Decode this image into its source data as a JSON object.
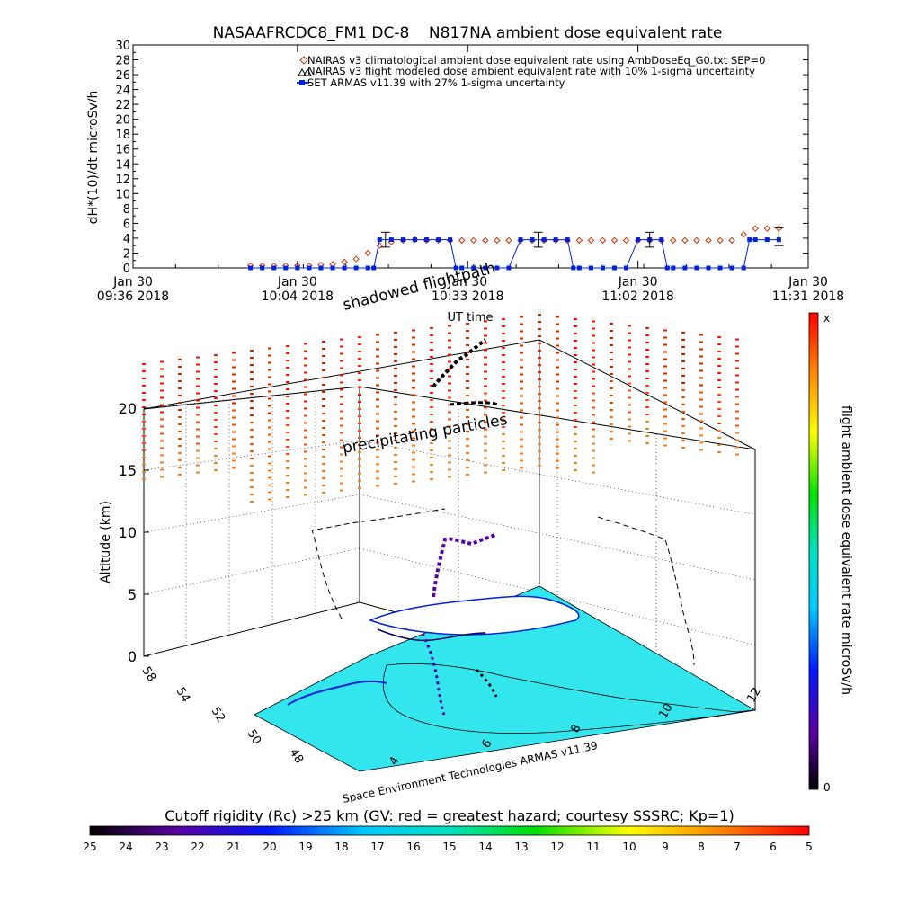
{
  "chart_data": [
    {
      "type": "scatter",
      "title": "NASAAFRCDC8_FM1 DC-8    N817NA ambient dose equivalent rate",
      "ylabel": "dH*(10)/dt microSv/h",
      "xlabel": "UT time",
      "ylim": [
        0,
        30
      ],
      "yticks": [
        0,
        2,
        4,
        6,
        8,
        10,
        12,
        14,
        16,
        18,
        20,
        22,
        24,
        26,
        28,
        30
      ],
      "xticks": [
        {
          "date": "Jan 30",
          "time": "09:36 2018",
          "t": 0
        },
        {
          "date": "Jan 30",
          "time": "10:04 2018",
          "t": 28
        },
        {
          "date": "Jan 30",
          "time": "10:33 2018",
          "t": 57
        },
        {
          "date": "Jan 30",
          "time": "11:02 2018",
          "t": 86
        },
        {
          "date": "Jan 30",
          "time": "11:31 2018",
          "t": 115
        }
      ],
      "legend_placement": "top",
      "series": [
        {
          "name": "NAIRAS v3 climatological ambient dose equivalent rate using AmbDoseEq_G0.txt SEP=0",
          "color": "#cc3300",
          "marker": "diamond",
          "x": [
            20,
            22,
            24,
            26,
            28,
            30,
            32,
            34,
            36,
            38,
            40,
            42,
            44,
            46,
            48,
            50,
            52,
            54,
            56,
            58,
            60,
            62,
            64,
            66,
            68,
            70,
            72,
            74,
            76,
            78,
            80,
            82,
            84,
            86,
            88,
            90,
            92,
            94,
            96,
            98,
            100,
            102,
            104,
            106,
            108,
            110
          ],
          "y": [
            0.3,
            0.3,
            0.3,
            0.3,
            0.3,
            0.3,
            0.4,
            0.5,
            0.8,
            1.2,
            2.0,
            3.0,
            3.5,
            3.7,
            3.8,
            3.7,
            3.7,
            3.7,
            3.7,
            3.7,
            3.7,
            3.7,
            3.7,
            3.7,
            3.7,
            3.7,
            3.7,
            3.7,
            3.7,
            3.7,
            3.7,
            3.7,
            3.7,
            3.7,
            3.7,
            3.7,
            3.7,
            3.7,
            3.7,
            3.7,
            3.7,
            3.7,
            4.5,
            5.3,
            5.3,
            5.3
          ]
        },
        {
          "name": "NAIRAS v3 flight modeled dose ambient equivalent rate with 10% 1-sigma uncertainty",
          "color": "#000000",
          "marker": "triangle",
          "x": [],
          "y": []
        },
        {
          "name": "SET ARMAS v11.39 with 27% 1-sigma uncertainty",
          "color": "#0022dd",
          "marker": "square",
          "x": [
            20,
            22,
            24,
            26,
            28,
            30,
            32,
            34,
            36,
            38,
            40,
            41,
            42,
            44,
            46,
            48,
            50,
            52,
            54,
            55,
            56,
            58,
            60,
            62,
            64,
            66,
            68,
            70,
            72,
            74,
            75,
            76,
            78,
            80,
            82,
            84,
            86,
            88,
            90,
            91,
            92,
            94,
            96,
            98,
            100,
            102,
            104,
            105,
            106,
            108,
            110
          ],
          "y": [
            0,
            0,
            0,
            0,
            0,
            0,
            0,
            0,
            0,
            0,
            0,
            0,
            3.8,
            3.8,
            3.8,
            3.8,
            3.8,
            3.8,
            3.8,
            0,
            0,
            0,
            0,
            0,
            0,
            3.8,
            3.8,
            3.8,
            3.8,
            3.8,
            0,
            0,
            0,
            0,
            0,
            0,
            3.8,
            3.8,
            3.8,
            0,
            0,
            0,
            0,
            0,
            0,
            0,
            0,
            3.8,
            3.8,
            3.8,
            3.8
          ]
        }
      ],
      "error_bars": [
        {
          "x": 43,
          "y": 3.8,
          "err": 1.0
        },
        {
          "x": 69,
          "y": 3.8,
          "err": 1.0
        },
        {
          "x": 88,
          "y": 3.8,
          "err": 1.0
        },
        {
          "x": 110,
          "y": 4.2,
          "err": 1.2
        }
      ]
    },
    {
      "type": "scatter",
      "title": "",
      "zlabel": "Altitude (km)",
      "zlim": [
        0,
        22
      ],
      "zticks": [
        0,
        5,
        10,
        15,
        20
      ],
      "lat_ticks": [
        58,
        54,
        52,
        50,
        48
      ],
      "lon_ticks": [
        4,
        6,
        8,
        10,
        12
      ],
      "annotations": [
        "shadowed flightpath",
        "precipitating particles"
      ],
      "colorbar_label": "flight ambient dose equivalent rate microSv/h",
      "colorbar_top": "x",
      "colorbar_bottom": "0",
      "credit": "Space Environment Technologies ARMAS v11.39",
      "flight_track": {
        "comment_free": true,
        "altitude_km": [
          0.5,
          1,
          2,
          3,
          4,
          5,
          6,
          7,
          8,
          9,
          10,
          10.5,
          11,
          11.5,
          12
        ]
      }
    }
  ],
  "bottom_colorbar": {
    "title": "Cutoff rigidity (Rc) >25 km (GV: red = greatest hazard; courtesy SSSRC; Kp=1)",
    "labels": [
      "25",
      "24",
      "23",
      "22",
      "21",
      "20",
      "19",
      "18",
      "17",
      "16",
      "15",
      "14",
      "13",
      "12",
      "11",
      "10",
      "9",
      "8",
      "7",
      "6",
      "5"
    ]
  },
  "colors": {
    "nairas": "#cc3300",
    "armas": "#0022dd",
    "sea": "#33e6ee",
    "land": "#ffffff"
  }
}
